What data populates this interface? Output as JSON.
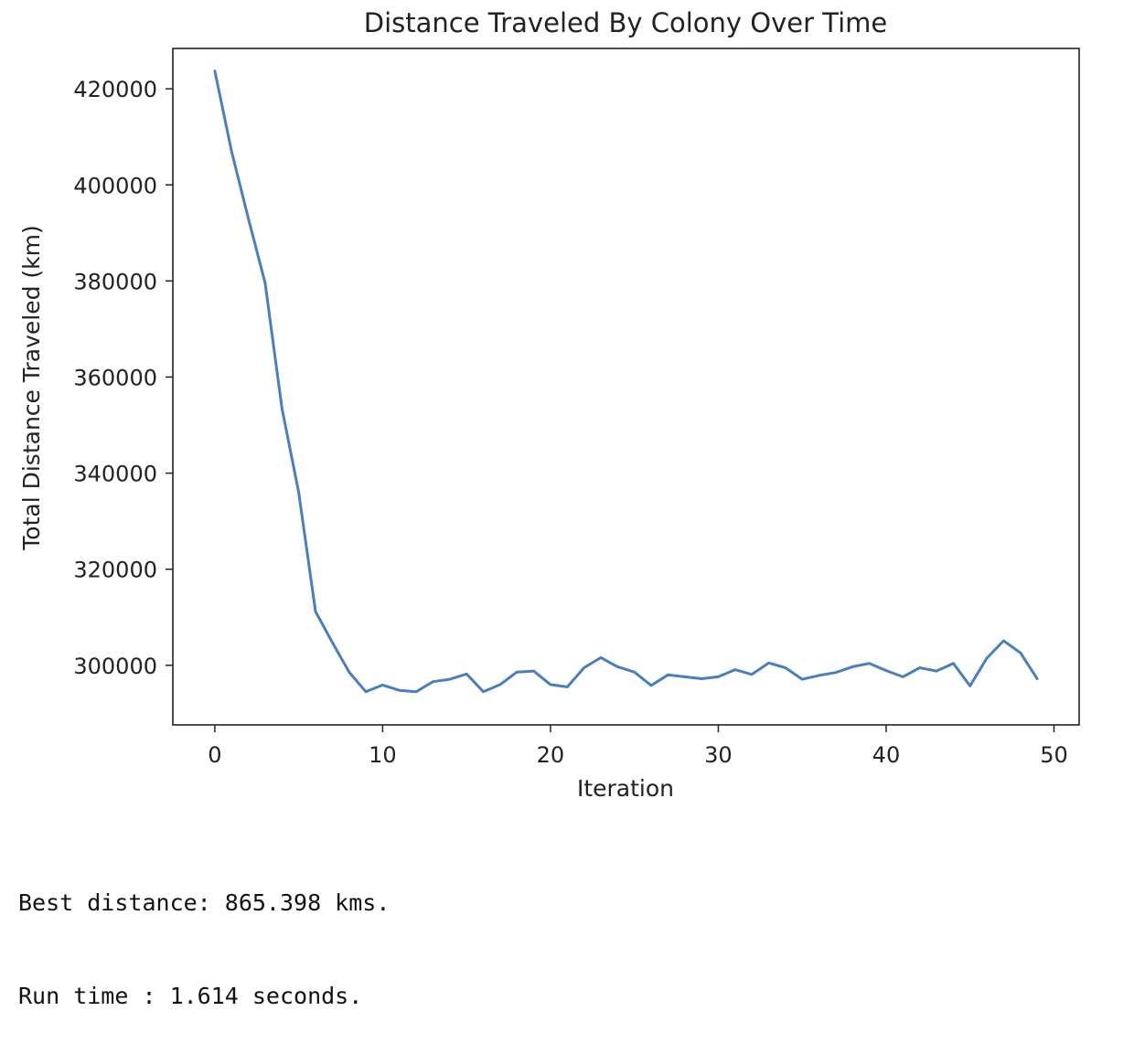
{
  "chart_data": {
    "type": "line",
    "title": "Distance Traveled By Colony Over Time",
    "xlabel": "Iteration",
    "ylabel": "Total Distance Traveled (km)",
    "xlim": [
      -2.5,
      51.5
    ],
    "ylim": [
      287600,
      428400
    ],
    "xticks": [
      0,
      10,
      20,
      30,
      40,
      50
    ],
    "yticks": [
      300000,
      320000,
      340000,
      360000,
      380000,
      400000,
      420000
    ],
    "grid": false,
    "legend": false,
    "line_color": "#4a7fbd",
    "series": [
      {
        "x": [
          0,
          1,
          2,
          3,
          4,
          5,
          6,
          7,
          8,
          9,
          10,
          11,
          12,
          13,
          14,
          15,
          16,
          17,
          18,
          19,
          20,
          21,
          22,
          23,
          24,
          25,
          26,
          27,
          28,
          29,
          30,
          31,
          32,
          33,
          34,
          35,
          36,
          37,
          38,
          39,
          40,
          41,
          42,
          43,
          44,
          45,
          46,
          47,
          48,
          49
        ],
        "values": [
          423700,
          407000,
          393000,
          379600,
          353500,
          336000,
          311200,
          304800,
          298600,
          294500,
          295900,
          294800,
          294500,
          296600,
          297100,
          298200,
          294500,
          296000,
          298600,
          298800,
          296000,
          295500,
          299500,
          301600,
          299700,
          298600,
          295800,
          298000,
          297600,
          297200,
          297600,
          299100,
          298100,
          300500,
          299500,
          297100,
          297900,
          298500,
          299700,
          300400,
          298900,
          297600,
          299500,
          298800,
          300400,
          295700,
          301500,
          305100,
          302600,
          297200
        ]
      }
    ]
  },
  "output": {
    "best_distance_line": "Best distance: 865.398 kms.",
    "run_time_line": "Run time : 1.614 seconds."
  }
}
